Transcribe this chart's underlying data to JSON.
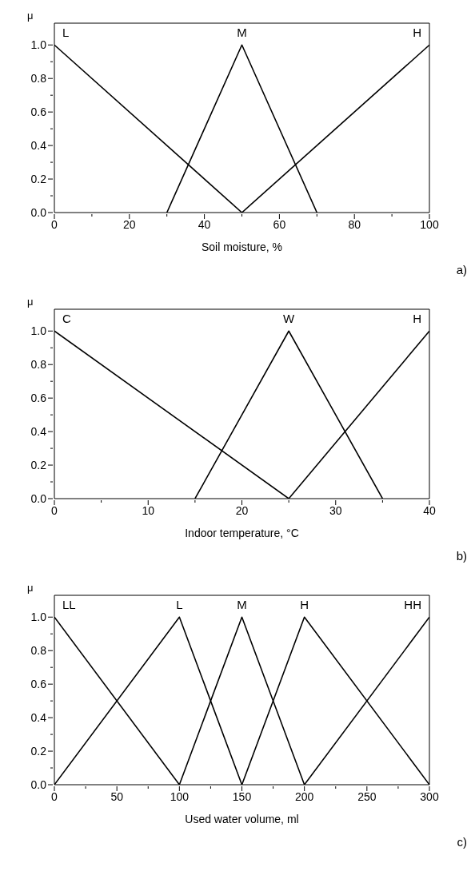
{
  "chart_data": [
    {
      "type": "line",
      "xlabel": "Soil moisture, %",
      "ylabel": "μ",
      "xlim": [
        0,
        100
      ],
      "xticks": [
        0,
        {
          "value": 10,
          "label": null
        },
        20,
        {
          "value": 30,
          "label": null
        },
        40,
        {
          "value": 50,
          "label": null
        },
        60,
        {
          "value": 70,
          "label": null
        },
        80,
        {
          "value": 90,
          "label": null
        },
        100
      ],
      "ylim": [
        0,
        1.13
      ],
      "yticks": [
        "0.0",
        {
          "value": 0.1,
          "label": null
        },
        0.2,
        {
          "value": 0.3,
          "label": null
        },
        0.4,
        {
          "value": 0.5,
          "label": null
        },
        0.6,
        {
          "value": 0.7,
          "label": null
        },
        0.8,
        {
          "value": 0.9,
          "label": null
        },
        {
          "value": 1,
          "label": "1.0"
        }
      ],
      "marker": "none",
      "line_style": "solid",
      "annotations": [
        "a)"
      ],
      "series": [
        {
          "name": "L",
          "color": "#000000",
          "x": [
            0,
            50
          ],
          "values": [
            1,
            0
          ]
        },
        {
          "name": "M",
          "color": "#000000",
          "x": [
            30,
            50,
            70
          ],
          "values": [
            0,
            1,
            0
          ]
        },
        {
          "name": "H",
          "color": "#000000",
          "x": [
            50,
            100
          ],
          "values": [
            0,
            1
          ]
        }
      ]
    },
    {
      "type": "line",
      "xlabel": "Indoor temperature, °C",
      "ylabel": "μ",
      "xlim": [
        0,
        40
      ],
      "xticks": [
        0,
        {
          "value": 5,
          "label": null
        },
        10,
        {
          "value": 15,
          "label": null
        },
        20,
        {
          "value": 25,
          "label": null
        },
        30,
        {
          "value": 35,
          "label": null
        },
        40
      ],
      "ylim": [
        0,
        1.13
      ],
      "yticks": [
        {
          "value": 0,
          "label": "0.0"
        },
        {
          "value": 0.1,
          "label": null
        },
        0.2,
        {
          "value": 0.3,
          "label": null
        },
        0.4,
        {
          "value": 0.5,
          "label": null
        },
        0.6,
        {
          "value": 0.7,
          "label": null
        },
        0.8,
        {
          "value": 0.9,
          "label": null
        },
        {
          "value": 1,
          "label": "1.0"
        }
      ],
      "marker": "none",
      "line_style": "solid",
      "annotations": [
        "b)"
      ],
      "series": [
        {
          "name": "C",
          "color": "#000000",
          "x": [
            0,
            25
          ],
          "values": [
            1,
            0
          ]
        },
        {
          "name": "W",
          "color": "#000000",
          "x": [
            15,
            25,
            35
          ],
          "values": [
            0,
            1,
            0
          ]
        },
        {
          "name": "H",
          "color": "#000000",
          "x": [
            25,
            40
          ],
          "values": [
            0,
            1
          ]
        }
      ]
    },
    {
      "type": "line",
      "xlabel": "Used water volume, ml",
      "ylabel": "μ",
      "xlim": [
        0,
        300
      ],
      "xticks": [
        0,
        {
          "value": 25,
          "label": null
        },
        50,
        {
          "value": 75,
          "label": null
        },
        100,
        {
          "value": 125,
          "label": null
        },
        150,
        {
          "value": 175,
          "label": null
        },
        200,
        {
          "value": 225,
          "label": null
        },
        250,
        {
          "value": 275,
          "label": null
        },
        300
      ],
      "ylim": [
        0,
        1.13
      ],
      "yticks": [
        {
          "value": 0,
          "label": "0.0"
        },
        {
          "value": 0.1,
          "label": null
        },
        0.2,
        {
          "value": 0.3,
          "label": null
        },
        0.4,
        {
          "value": 0.5,
          "label": null
        },
        0.6,
        {
          "value": 0.7,
          "label": null
        },
        0.8,
        {
          "value": 0.9,
          "label": null
        },
        {
          "value": 1,
          "label": "1.0"
        }
      ],
      "marker": "none",
      "line_style": "solid",
      "annotations": [
        "c)"
      ],
      "series": [
        {
          "name": "LL",
          "color": "#000000",
          "x": [
            0,
            100
          ],
          "values": [
            1,
            0
          ]
        },
        {
          "name": "L",
          "color": "#000000",
          "x": [
            0,
            100,
            150
          ],
          "values": [
            0,
            1,
            0
          ]
        },
        {
          "name": "M",
          "color": "#000000",
          "x": [
            100,
            150,
            200
          ],
          "values": [
            0,
            1,
            0
          ]
        },
        {
          "name": "H",
          "color": "#000000",
          "x": [
            150,
            200,
            300
          ],
          "values": [
            0,
            1,
            0
          ]
        },
        {
          "name": "HH",
          "color": "#000000",
          "x": [
            200,
            300
          ],
          "values": [
            0,
            1
          ]
        }
      ]
    }
  ]
}
